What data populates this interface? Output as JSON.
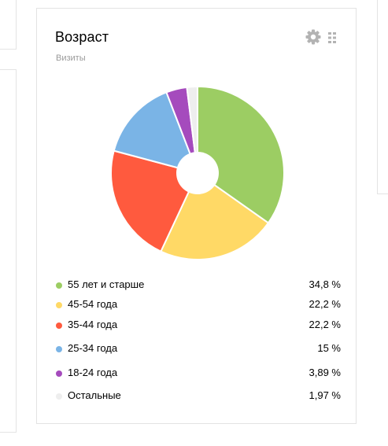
{
  "widget": {
    "title": "Возраст",
    "subtitle": "Визиты",
    "settings_icon": "gear-icon",
    "drag_icon": "drag-handle-icon"
  },
  "chart_data": {
    "type": "pie",
    "hole": true,
    "slices": [
      {
        "label": "55 лет и старше",
        "value": 34.8,
        "value_text": "34,8 %",
        "color": "#9ccd63"
      },
      {
        "label": "45-54 года",
        "value": 22.2,
        "value_text": "22,2 %",
        "color": "#ffd966"
      },
      {
        "label": "35-44 года",
        "value": 22.2,
        "value_text": "22,2 %",
        "color": "#ff5a3e"
      },
      {
        "label": "25-34 года",
        "value": 15,
        "value_text": "15 %",
        "color": "#7ab4e6"
      },
      {
        "label": "18-24 года",
        "value": 3.89,
        "value_text": "3,89 %",
        "color": "#a54bbd"
      },
      {
        "label": "Остальные",
        "value": 1.97,
        "value_text": "1,97 %",
        "color": "#eeeeee"
      }
    ]
  }
}
